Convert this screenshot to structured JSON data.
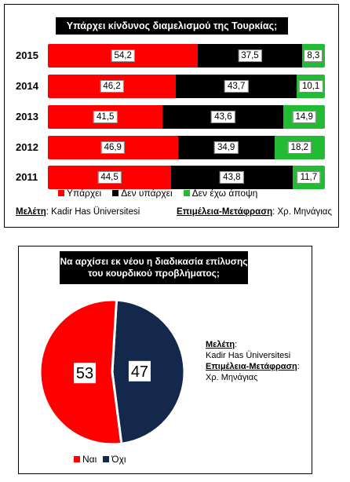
{
  "colors": {
    "yes": "#ff0000",
    "no": "#000000",
    "no_opinion": "#22bb33",
    "pie_yes": "#ff0000",
    "pie_no": "#13284a"
  },
  "chart_data": [
    {
      "type": "bar",
      "title": "Υπάρχει κίνδυνος διαμελισμού της Τουρκίας;",
      "categories": [
        "2015",
        "2014",
        "2013",
        "2012",
        "2011"
      ],
      "series": [
        {
          "name": "Υπάρχει",
          "values": [
            54.2,
            46.2,
            41.5,
            46.9,
            44.5
          ],
          "labels": [
            "54,2",
            "46,2",
            "41,5",
            "46,9",
            "44,5"
          ]
        },
        {
          "name": "Δεν υπάρχει",
          "values": [
            37.5,
            43.7,
            43.6,
            34.9,
            43.8
          ],
          "labels": [
            "37,5",
            "43,7",
            "43,6",
            "34,9",
            "43,8"
          ]
        },
        {
          "name": "Δεν έχω άποψη",
          "values": [
            8.3,
            10.1,
            14.9,
            18.2,
            11.7
          ],
          "labels": [
            "8,3",
            "10,1",
            "14,9",
            "18,2",
            "11,7"
          ]
        }
      ],
      "stacked": true,
      "legend": "bottom"
    },
    {
      "type": "pie",
      "title": "Να αρχίσει εκ νέου η διαδικασία επίλυσης του κουρδικού προβλήματος;",
      "categories": [
        "Ναι",
        "Όχι"
      ],
      "values": [
        53,
        47
      ],
      "legend": "bottom"
    }
  ],
  "panel1": {
    "title": "Υπάρχει κίνδυνος διαμελισμού της Τουρκίας;",
    "legend": [
      "Υπάρχει",
      "Δεν υπάρχει",
      "Δεν έχω άποψη"
    ],
    "study_label": "Μελέτη",
    "study_value": ": Kadir Has Üniversitesi",
    "editing_label": "Επιμέλεια-Μετάφραση",
    "editing_value": ": Χρ. Μηνάγιας"
  },
  "panel2": {
    "title_line1": "Να αρχίσει εκ νέου η διαδικασία επίλυσης",
    "title_line2": "του κουρδικού προβλήματος;",
    "yes_label": "53",
    "no_label": "47",
    "legend": [
      "Ναι",
      "Όχι"
    ],
    "study_label": "Μελέτη",
    "study_value": "Kadir Has Üniversitesi",
    "editing_label": "Επιμέλεια-Μετάφραση",
    "editing_value": "Χρ. Μηνάγιας"
  }
}
